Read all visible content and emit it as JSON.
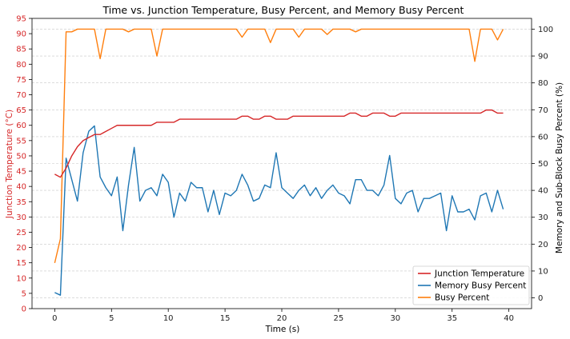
{
  "chart_data": {
    "type": "line",
    "title": "Time vs. Junction Temperature, Busy Percent, and Memory Busy Percent",
    "xlabel": "Time (s)",
    "ylabel_left": "Junction Temperature (°C)",
    "ylabel_right": "Memory and Sub-Block Busy Percent (%)",
    "xlim": [
      -2,
      42
    ],
    "ylim_left": [
      0,
      95
    ],
    "ylim_right": [
      -4,
      104
    ],
    "x_ticks": [
      0,
      5,
      10,
      15,
      20,
      25,
      30,
      35,
      40
    ],
    "y_ticks_left": [
      0,
      5,
      10,
      15,
      20,
      25,
      30,
      35,
      40,
      45,
      50,
      55,
      60,
      65,
      70,
      75,
      80,
      85,
      90,
      95
    ],
    "y_ticks_right": [
      0,
      10,
      20,
      30,
      40,
      50,
      60,
      70,
      80,
      90,
      100
    ],
    "grid": "horizontal dashed",
    "legend_position": "lower-right",
    "colors": {
      "left_axis": "#d62728",
      "junction": "#d62728",
      "memory": "#1f77b4",
      "busy": "#ff7f0e"
    },
    "series": [
      {
        "name": "Junction Temperature",
        "axis": "left",
        "color": "#d62728",
        "x": [
          0,
          0.5,
          1,
          1.5,
          2,
          2.5,
          3,
          3.5,
          4,
          4.5,
          5,
          5.5,
          6,
          6.5,
          7,
          7.5,
          8,
          8.5,
          9,
          9.5,
          10,
          10.5,
          11,
          11.5,
          12,
          12.5,
          13,
          13.5,
          14,
          14.5,
          15,
          15.5,
          16,
          16.5,
          17,
          17.5,
          18,
          18.5,
          19,
          19.5,
          20,
          20.5,
          21,
          21.5,
          22,
          22.5,
          23,
          23.5,
          24,
          24.5,
          25,
          25.5,
          26,
          26.5,
          27,
          27.5,
          28,
          28.5,
          29,
          29.5,
          30,
          30.5,
          31,
          31.5,
          32,
          32.5,
          33,
          33.5,
          34,
          34.5,
          35,
          35.5,
          36,
          36.5,
          37,
          37.5,
          38,
          38.5,
          39,
          39.5
        ],
        "y": [
          44,
          43,
          46,
          50,
          53,
          55,
          56,
          57,
          57,
          58,
          59,
          60,
          60,
          60,
          60,
          60,
          60,
          60,
          61,
          61,
          61,
          61,
          62,
          62,
          62,
          62,
          62,
          62,
          62,
          62,
          62,
          62,
          62,
          63,
          63,
          62,
          62,
          63,
          63,
          62,
          62,
          62,
          63,
          63,
          63,
          63,
          63,
          63,
          63,
          63,
          63,
          63,
          64,
          64,
          63,
          63,
          64,
          64,
          64,
          63,
          63,
          64,
          64,
          64,
          64,
          64,
          64,
          64,
          64,
          64,
          64,
          64,
          64,
          64,
          64,
          64,
          65,
          65,
          64,
          64
        ]
      },
      {
        "name": "Memory Busy Percent",
        "axis": "right",
        "color": "#1f77b4",
        "x": [
          0,
          0.5,
          1,
          1.5,
          2,
          2.5,
          3,
          3.5,
          4,
          4.5,
          5,
          5.5,
          6,
          6.5,
          7,
          7.5,
          8,
          8.5,
          9,
          9.5,
          10,
          10.5,
          11,
          11.5,
          12,
          12.5,
          13,
          13.5,
          14,
          14.5,
          15,
          15.5,
          16,
          16.5,
          17,
          17.5,
          18,
          18.5,
          19,
          19.5,
          20,
          20.5,
          21,
          21.5,
          22,
          22.5,
          23,
          23.5,
          24,
          24.5,
          25,
          25.5,
          26,
          26.5,
          27,
          27.5,
          28,
          28.5,
          29,
          29.5,
          30,
          30.5,
          31,
          31.5,
          32,
          32.5,
          33,
          33.5,
          34,
          34.5,
          35,
          35.5,
          36,
          36.5,
          37,
          37.5,
          38,
          38.5,
          39,
          39.5
        ],
        "y": [
          2,
          1,
          52,
          44,
          36,
          54,
          62,
          64,
          45,
          41,
          38,
          45,
          25,
          42,
          56,
          36,
          40,
          41,
          38,
          46,
          43,
          30,
          39,
          36,
          43,
          41,
          41,
          32,
          40,
          31,
          39,
          38,
          40,
          46,
          42,
          36,
          37,
          42,
          41,
          54,
          41,
          39,
          37,
          40,
          42,
          38,
          41,
          37,
          40,
          42,
          39,
          38,
          35,
          44,
          44,
          40,
          40,
          38,
          42,
          53,
          37,
          35,
          39,
          40,
          32,
          37,
          37,
          38,
          39,
          25,
          38,
          32,
          32,
          33,
          29,
          38,
          39,
          32,
          40,
          33
        ]
      },
      {
        "name": "Busy Percent",
        "axis": "right",
        "color": "#ff7f0e",
        "x": [
          0,
          0.5,
          1,
          1.5,
          2,
          2.5,
          3,
          3.5,
          4,
          4.5,
          5,
          5.5,
          6,
          6.5,
          7,
          7.5,
          8,
          8.5,
          9,
          9.5,
          10,
          10.5,
          11,
          11.5,
          12,
          12.5,
          13,
          13.5,
          14,
          14.5,
          15,
          15.5,
          16,
          16.5,
          17,
          17.5,
          18,
          18.5,
          19,
          19.5,
          20,
          20.5,
          21,
          21.5,
          22,
          22.5,
          23,
          23.5,
          24,
          24.5,
          25,
          25.5,
          26,
          26.5,
          27,
          27.5,
          28,
          28.5,
          29,
          29.5,
          30,
          30.5,
          31,
          31.5,
          32,
          32.5,
          33,
          33.5,
          34,
          34.5,
          35,
          35.5,
          36,
          36.5,
          37,
          37.5,
          38,
          38.5,
          39,
          39.5
        ],
        "y": [
          13,
          22,
          99,
          99,
          100,
          100,
          100,
          100,
          89,
          100,
          100,
          100,
          100,
          99,
          100,
          100,
          100,
          100,
          90,
          100,
          100,
          100,
          100,
          100,
          100,
          100,
          100,
          100,
          100,
          100,
          100,
          100,
          100,
          97,
          100,
          100,
          100,
          100,
          95,
          100,
          100,
          100,
          100,
          97,
          100,
          100,
          100,
          100,
          98,
          100,
          100,
          100,
          100,
          99,
          100,
          100,
          100,
          100,
          100,
          100,
          100,
          100,
          100,
          100,
          100,
          100,
          100,
          100,
          100,
          100,
          100,
          100,
          100,
          100,
          88,
          100,
          100,
          100,
          96,
          100
        ]
      }
    ]
  }
}
